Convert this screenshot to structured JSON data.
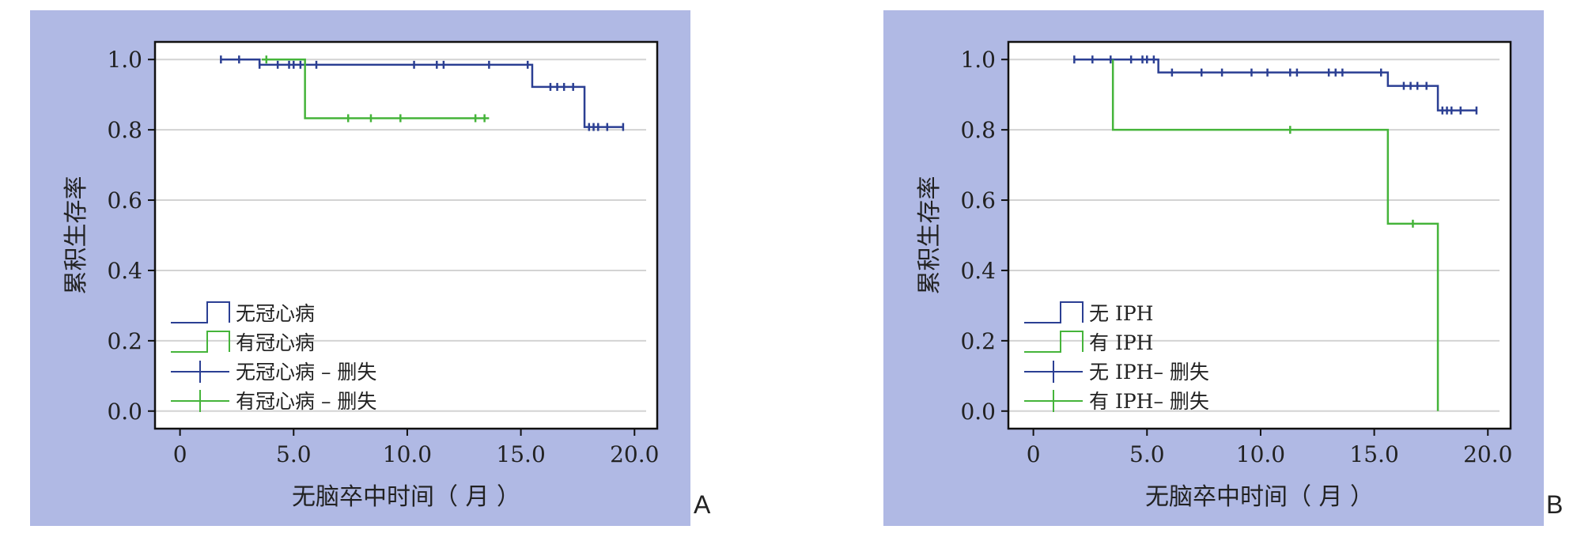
{
  "panels": [
    {
      "panel_label": "A",
      "chart_data": {
        "type": "line",
        "subtype": "kaplan-meier",
        "title": "",
        "xlabel": "无脑卒中时间（ 月 ）",
        "ylabel": "累积生存率",
        "xlim": [
          -1.1,
          21.0
        ],
        "ylim": [
          -0.05,
          1.05
        ],
        "xticks": [
          0,
          5.0,
          10.0,
          15.0,
          20.0
        ],
        "xtick_labels": [
          "0",
          "5.0",
          "10.0",
          "15.0",
          "20.0"
        ],
        "yticks": [
          0.0,
          0.2,
          0.4,
          0.6,
          0.8,
          1.0
        ],
        "ytick_labels": [
          "0.0",
          "0.2",
          "0.4",
          "0.6",
          "0.8",
          "1.0"
        ],
        "grid": "horizontal",
        "legend_position": "bottom-left",
        "legend": [
          "无冠心病",
          "有冠心病",
          "无冠心病 – 删失",
          "有冠心病 – 删失"
        ],
        "series": [
          {
            "name": "无冠心病",
            "color": "#2b3f93",
            "steps": [
              [
                1.8,
                1.0
              ],
              [
                3.5,
                0.985
              ],
              [
                15.5,
                0.922
              ],
              [
                17.8,
                0.808
              ],
              [
                19.5,
                0.808
              ]
            ],
            "censored": [
              [
                1.8,
                1.0
              ],
              [
                2.6,
                1.0
              ],
              [
                3.5,
                0.985
              ],
              [
                4.3,
                0.985
              ],
              [
                4.8,
                0.985
              ],
              [
                5.0,
                0.985
              ],
              [
                5.3,
                0.985
              ],
              [
                6.0,
                0.985
              ],
              [
                10.3,
                0.985
              ],
              [
                11.3,
                0.985
              ],
              [
                11.6,
                0.985
              ],
              [
                13.6,
                0.985
              ],
              [
                15.3,
                0.985
              ],
              [
                16.3,
                0.922
              ],
              [
                16.6,
                0.922
              ],
              [
                16.9,
                0.922
              ],
              [
                17.3,
                0.922
              ],
              [
                18.0,
                0.808
              ],
              [
                18.2,
                0.808
              ],
              [
                18.4,
                0.808
              ],
              [
                18.8,
                0.808
              ],
              [
                19.5,
                0.808
              ]
            ]
          },
          {
            "name": "有冠心病",
            "color": "#45b43a",
            "steps": [
              [
                3.6,
                1.0
              ],
              [
                5.5,
                0.833
              ],
              [
                13.6,
                0.833
              ]
            ],
            "censored": [
              [
                3.8,
                1.0
              ],
              [
                7.4,
                0.833
              ],
              [
                8.4,
                0.833
              ],
              [
                9.7,
                0.833
              ],
              [
                13.0,
                0.833
              ],
              [
                13.4,
                0.833
              ]
            ]
          }
        ]
      }
    },
    {
      "panel_label": "B",
      "chart_data": {
        "type": "line",
        "subtype": "kaplan-meier",
        "title": "",
        "xlabel": "无脑卒中时间（ 月 ）",
        "ylabel": "累积生存率",
        "xlim": [
          -1.1,
          21.0
        ],
        "ylim": [
          -0.05,
          1.05
        ],
        "xticks": [
          0,
          5.0,
          10.0,
          15.0,
          20.0
        ],
        "xtick_labels": [
          "0",
          "5.0",
          "10.0",
          "15.0",
          "20.0"
        ],
        "yticks": [
          0.0,
          0.2,
          0.4,
          0.6,
          0.8,
          1.0
        ],
        "ytick_labels": [
          "0.0",
          "0.2",
          "0.4",
          "0.6",
          "0.8",
          "1.0"
        ],
        "grid": "horizontal",
        "legend_position": "bottom-left",
        "legend": [
          "无 IPH",
          "有 IPH",
          "无 IPH– 删失",
          "有 IPH– 删失"
        ],
        "series": [
          {
            "name": "无 IPH",
            "color": "#2b3f93",
            "steps": [
              [
                1.8,
                1.0
              ],
              [
                5.5,
                0.963
              ],
              [
                15.6,
                0.925
              ],
              [
                17.8,
                0.855
              ],
              [
                19.5,
                0.855
              ]
            ],
            "censored": [
              [
                1.8,
                1.0
              ],
              [
                2.6,
                1.0
              ],
              [
                3.4,
                1.0
              ],
              [
                4.3,
                1.0
              ],
              [
                4.8,
                1.0
              ],
              [
                5.0,
                1.0
              ],
              [
                5.3,
                1.0
              ],
              [
                6.1,
                0.963
              ],
              [
                7.4,
                0.963
              ],
              [
                8.3,
                0.963
              ],
              [
                9.6,
                0.963
              ],
              [
                10.3,
                0.963
              ],
              [
                11.3,
                0.963
              ],
              [
                11.6,
                0.963
              ],
              [
                13.0,
                0.963
              ],
              [
                13.3,
                0.963
              ],
              [
                13.6,
                0.963
              ],
              [
                15.3,
                0.963
              ],
              [
                16.3,
                0.925
              ],
              [
                16.6,
                0.925
              ],
              [
                16.9,
                0.925
              ],
              [
                17.3,
                0.925
              ],
              [
                18.0,
                0.855
              ],
              [
                18.2,
                0.855
              ],
              [
                18.4,
                0.855
              ],
              [
                18.8,
                0.855
              ],
              [
                19.5,
                0.855
              ]
            ]
          },
          {
            "name": "有 IPH",
            "color": "#45b43a",
            "steps": [
              [
                3.5,
                1.0
              ],
              [
                3.5,
                0.8
              ],
              [
                15.6,
                0.8
              ],
              [
                15.6,
                0.533
              ],
              [
                17.8,
                0.533
              ],
              [
                17.8,
                0.0
              ]
            ],
            "censored": [
              [
                11.3,
                0.8
              ],
              [
                16.7,
                0.533
              ]
            ]
          }
        ]
      }
    }
  ]
}
